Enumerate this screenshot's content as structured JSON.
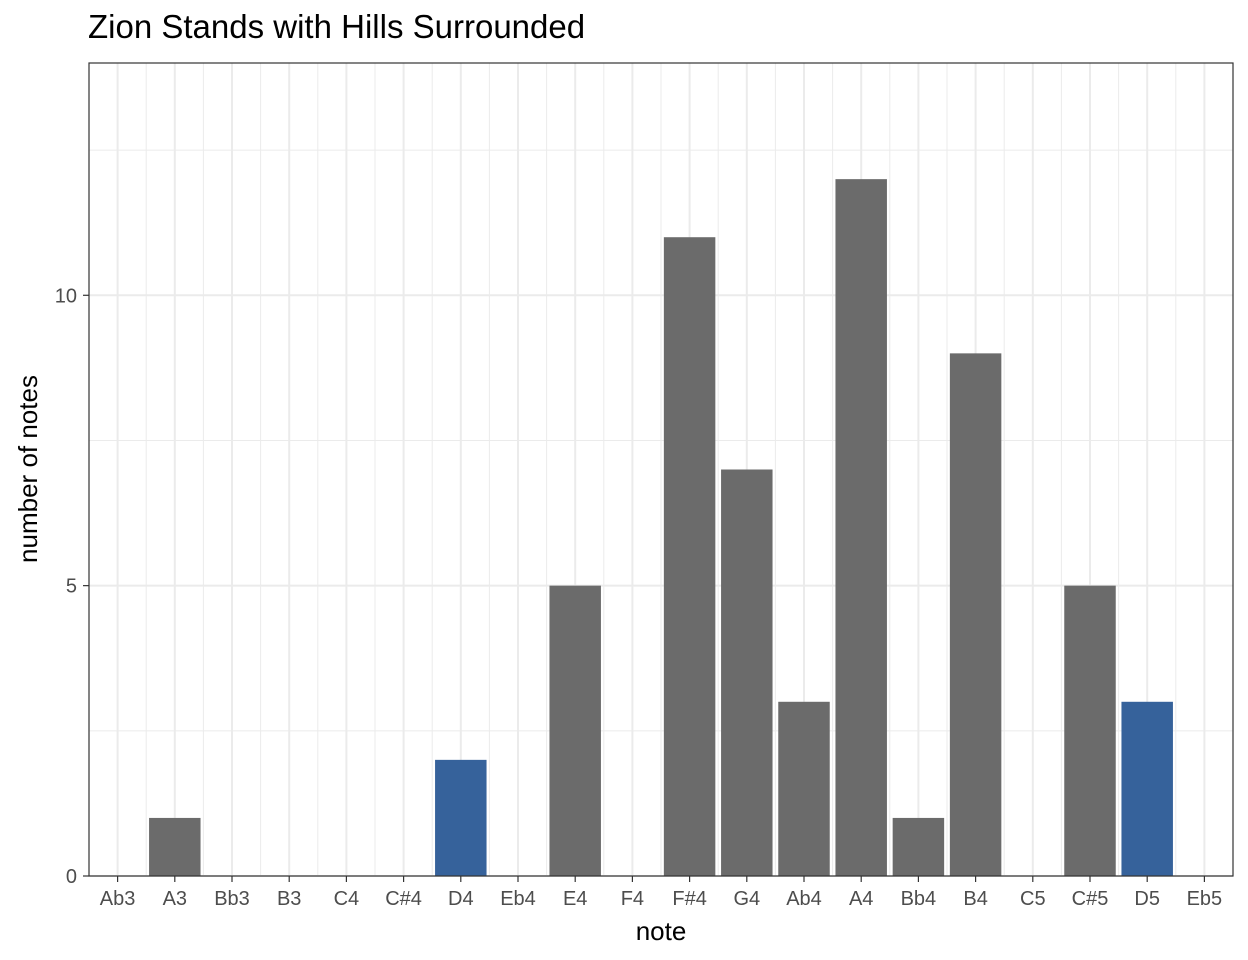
{
  "chart_data": {
    "type": "bar",
    "title": "Zion Stands with Hills Surrounded",
    "xlabel": "note",
    "ylabel": "number of notes",
    "categories": [
      "Ab3",
      "A3",
      "Bb3",
      "B3",
      "C4",
      "C#4",
      "D4",
      "Eb4",
      "E4",
      "F4",
      "F#4",
      "G4",
      "Ab4",
      "A4",
      "Bb4",
      "B4",
      "C5",
      "C#5",
      "D5",
      "Eb5"
    ],
    "values": [
      0,
      1,
      0,
      0,
      0,
      0,
      2,
      0,
      5,
      0,
      11,
      7,
      3,
      12,
      1,
      9,
      0,
      5,
      3,
      0
    ],
    "highlighted": [
      "D4",
      "D5"
    ],
    "colors": {
      "default": "#6b6b6b",
      "highlight": "#36629b",
      "grid": "#ebebeb",
      "panel_border": "#333333"
    },
    "ylim": [
      0,
      14
    ],
    "yticks": [
      0,
      5,
      10
    ],
    "grid": true,
    "legend": "none"
  }
}
